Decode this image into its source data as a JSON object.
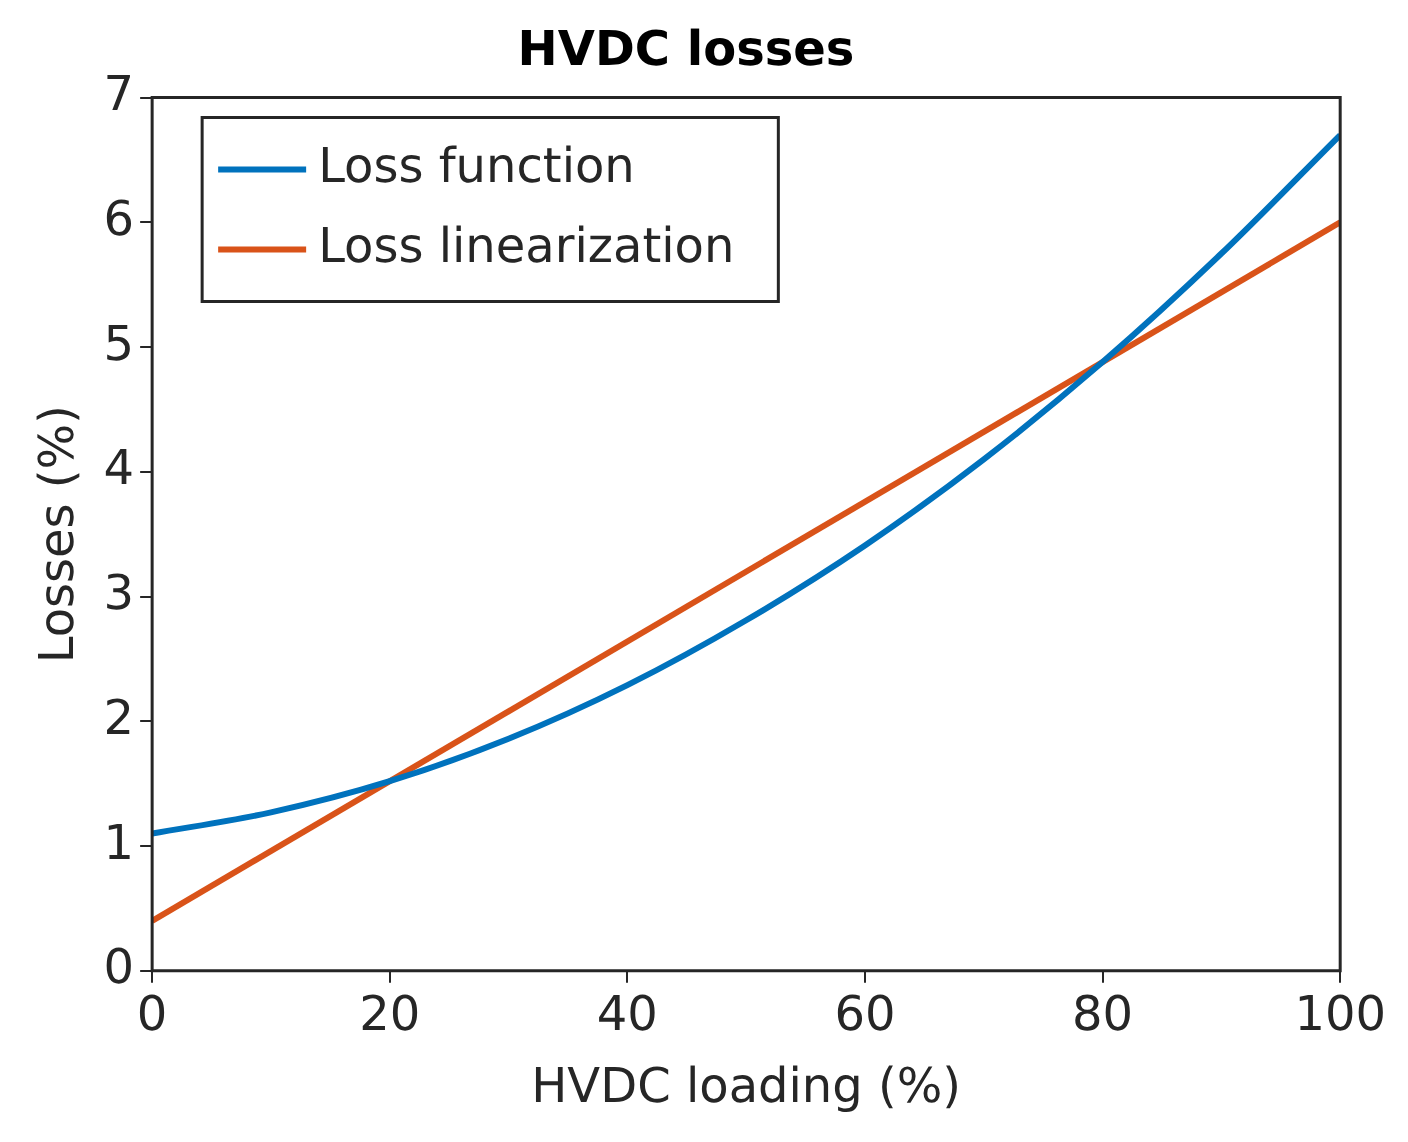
{
  "chart_data": {
    "type": "line",
    "title": "HVDC losses",
    "xlabel": "HVDC loading (%)",
    "ylabel": "Losses (%)",
    "xlim": [
      0,
      100
    ],
    "xticks": [
      0,
      20,
      40,
      60,
      80,
      100
    ],
    "ylim": [
      0,
      7
    ],
    "yticks": [
      0,
      1,
      2,
      3,
      4,
      5,
      6,
      7
    ],
    "grid": false,
    "legend": "top left",
    "marker": "none",
    "line_style": "solid",
    "series": [
      {
        "name": "Loss function",
        "color": "#0072bd",
        "x": [
          0,
          10,
          20,
          30,
          40,
          50,
          60,
          70,
          80,
          90,
          100
        ],
        "values": [
          1.1,
          1.27,
          1.52,
          1.86,
          2.29,
          2.81,
          3.41,
          4.1,
          4.88,
          5.75,
          6.7
        ]
      },
      {
        "name": "Loss linearization",
        "color": "#d95319",
        "x": [
          0,
          100
        ],
        "values": [
          0.4,
          6.0
        ]
      }
    ]
  }
}
